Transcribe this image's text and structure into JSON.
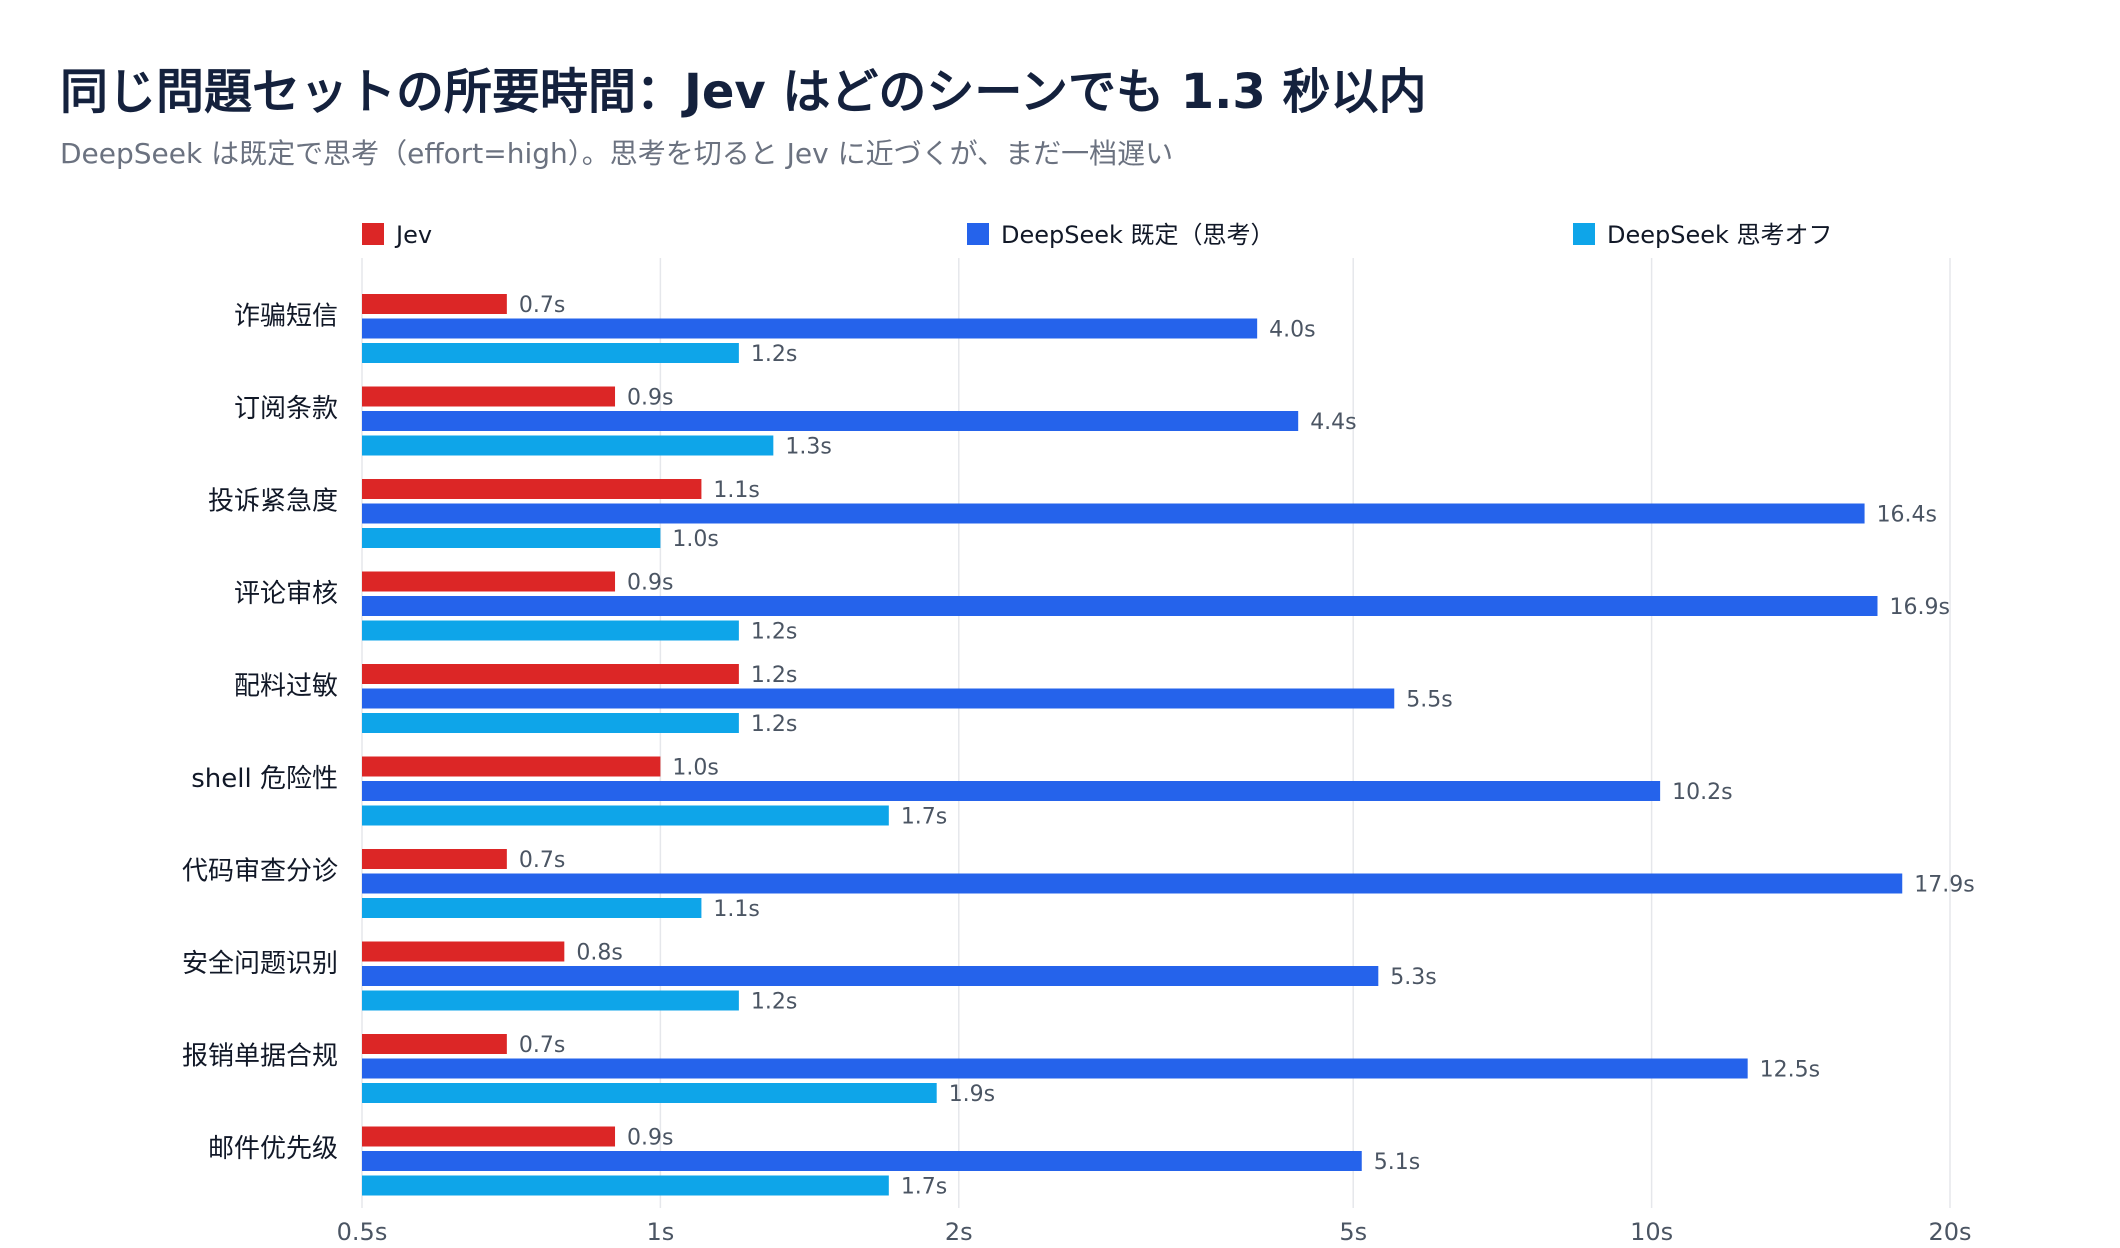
{
  "title": "同じ問題セットの所要時間：Jev はどのシーンでも 1.3 秒以内",
  "subtitle": "DeepSeek は既定で思考（effort=high）。思考を切ると Jev に近づくが、まだ一档遅い",
  "chart_data": {
    "type": "bar",
    "orientation": "horizontal",
    "x_scale": "log",
    "xlim": [
      0.5,
      20
    ],
    "x_ticks": [
      0.5,
      1,
      2,
      5,
      10,
      20
    ],
    "x_tick_labels": [
      "0.5s",
      "1s",
      "2s",
      "5s",
      "10s",
      "20s"
    ],
    "grid": true,
    "legend_position": "top",
    "categories": [
      "诈骗短信",
      "订阅条款",
      "投诉紧急度",
      "评论审核",
      "配料过敏",
      "shell 危险性",
      "代码审查分诊",
      "安全问题识别",
      "报销单据合规",
      "邮件优先级"
    ],
    "series": [
      {
        "name": "Jev",
        "color": "#dc2626",
        "values": [
          0.7,
          0.9,
          1.1,
          0.9,
          1.2,
          1.0,
          0.7,
          0.8,
          0.7,
          0.9
        ],
        "labels": [
          "0.7s",
          "0.9s",
          "1.1s",
          "0.9s",
          "1.2s",
          "1.0s",
          "0.7s",
          "0.8s",
          "0.7s",
          "0.9s"
        ]
      },
      {
        "name": "DeepSeek 既定（思考）",
        "color": "#2563eb",
        "values": [
          4.0,
          4.4,
          16.4,
          16.9,
          5.5,
          10.2,
          17.9,
          5.3,
          12.5,
          5.1
        ],
        "labels": [
          "4.0s",
          "4.4s",
          "16.4s",
          "16.9s",
          "5.5s",
          "10.2s",
          "17.9s",
          "5.3s",
          "12.5s",
          "5.1s"
        ]
      },
      {
        "name": "DeepSeek 思考オフ",
        "color": "#0ea5e9",
        "values": [
          1.2,
          1.3,
          1.0,
          1.2,
          1.2,
          1.7,
          1.1,
          1.2,
          1.9,
          1.7
        ],
        "labels": [
          "1.2s",
          "1.3s",
          "1.0s",
          "1.2s",
          "1.2s",
          "1.7s",
          "1.1s",
          "1.2s",
          "1.9s",
          "1.7s"
        ]
      }
    ]
  }
}
